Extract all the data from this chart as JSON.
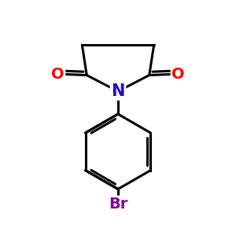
{
  "bg_color": "#ffffff",
  "line_color": "#000000",
  "N_color": "#2200dd",
  "O_color": "#ff0000",
  "Br_color": "#880099",
  "line_width": 2.2,
  "dbo": 0.13,
  "font_size_N": 15,
  "font_size_O": 14,
  "font_size_Br": 14,
  "fig_size": [
    3.0,
    3.0
  ],
  "dpi": 100,
  "xlim": [
    0,
    10
  ],
  "ylim": [
    0,
    10
  ]
}
